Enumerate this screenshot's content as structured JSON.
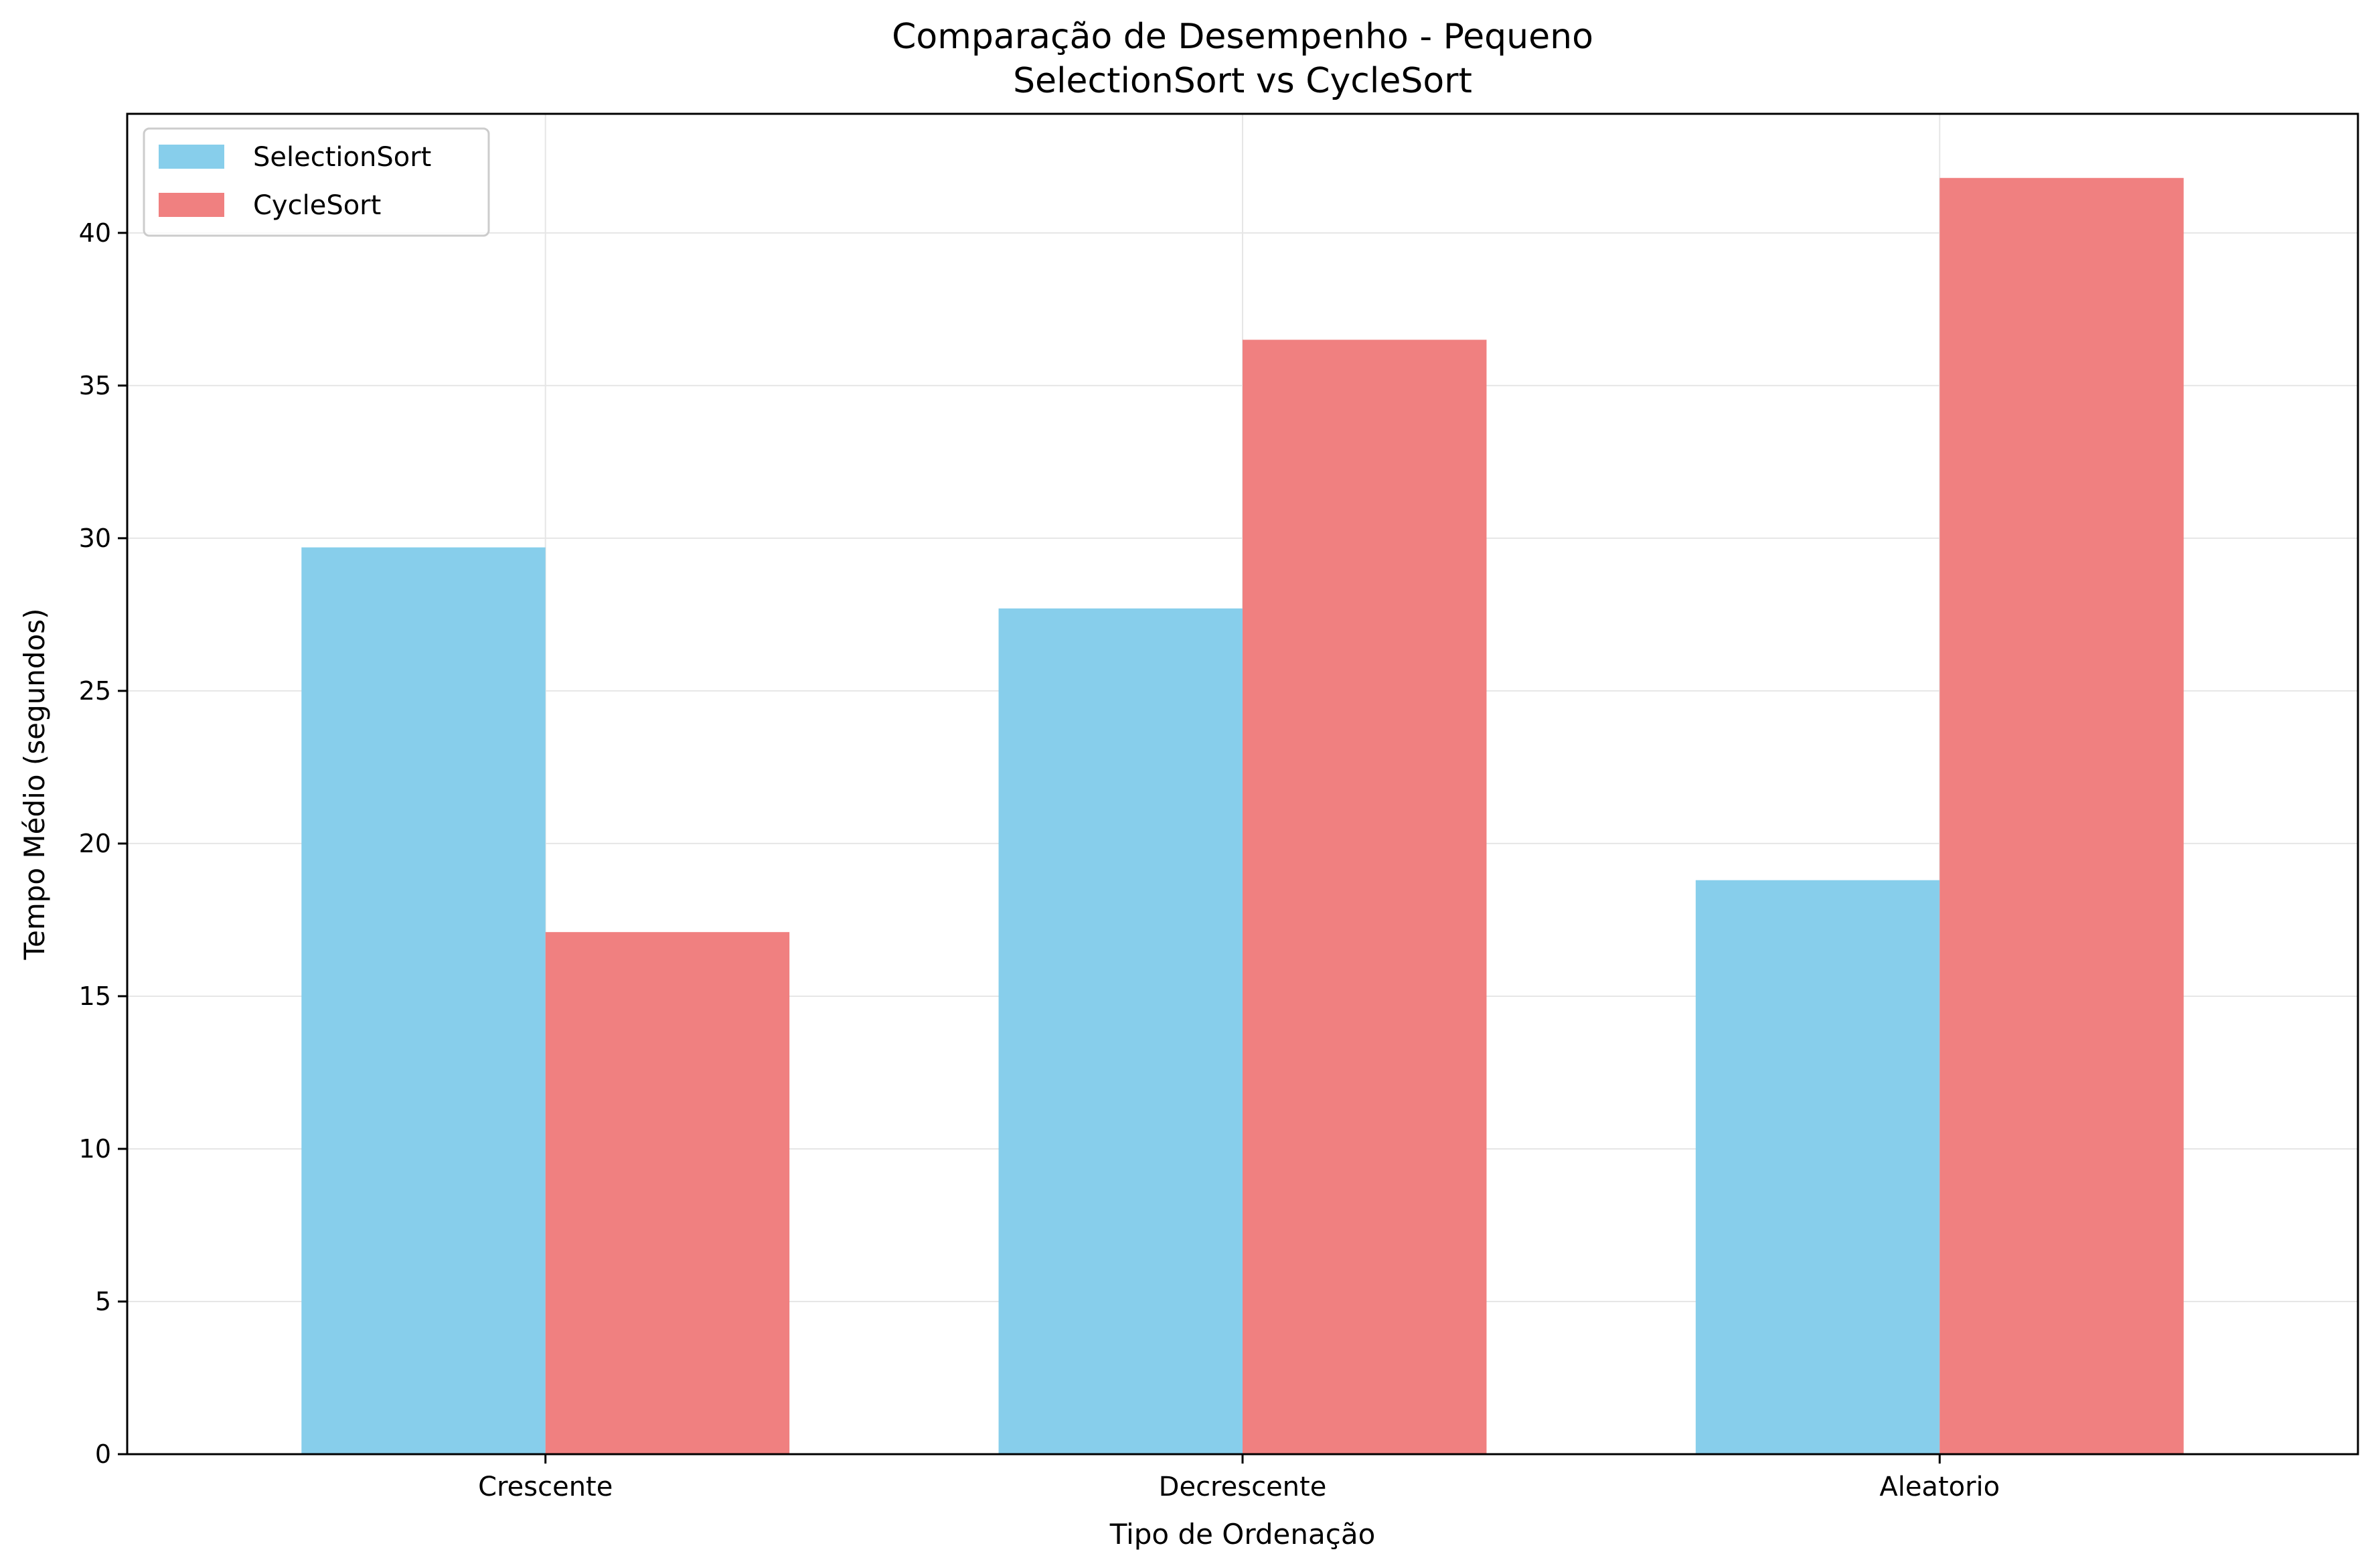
{
  "chart_data": {
    "type": "bar",
    "title_line1": "Comparação de Desempenho - Pequeno",
    "title_line2": "SelectionSort vs CycleSort",
    "xlabel": "Tipo de Ordenação",
    "ylabel": "Tempo Médio (segundos)",
    "categories": [
      "Crescente",
      "Decrescente",
      "Aleatorio"
    ],
    "series": [
      {
        "name": "SelectionSort",
        "values": [
          29.7,
          27.7,
          18.8
        ],
        "color": "#87CEEB"
      },
      {
        "name": "CycleSort",
        "values": [
          17.1,
          36.5,
          41.8
        ],
        "color": "#F08080"
      }
    ],
    "ylim": [
      0,
      43.9
    ],
    "yticks": [
      0,
      5,
      10,
      15,
      20,
      25,
      30,
      35,
      40
    ],
    "grid": true,
    "legend_position": "top-left"
  }
}
